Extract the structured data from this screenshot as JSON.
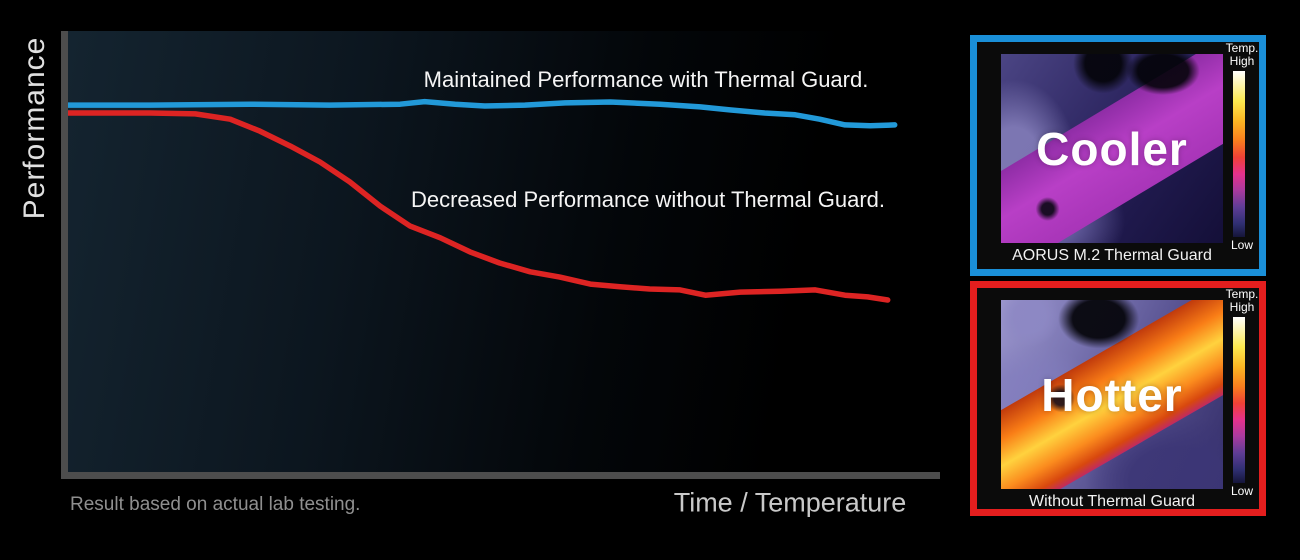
{
  "colors": {
    "background": "#000000",
    "axis": "#4d4d4d",
    "blue_line": "#2299d8",
    "red_line": "#dd2423",
    "cooler_border": "#1a8fd8",
    "hotter_border": "#e41e1e"
  },
  "chart_data": {
    "type": "line",
    "title": "",
    "xlabel": "Time / Temperature",
    "ylabel": "Performance",
    "footnote": "Result based on actual lab testing.",
    "x_range": [
      0,
      100
    ],
    "y_range": [
      0,
      100
    ],
    "grid": false,
    "legend_position": "inline-annotations",
    "series": [
      {
        "id": "maintained-line",
        "name": "Maintained Performance with Thermal Guard.",
        "color": "#2299d8",
        "points": [
          [
            0,
            83.2
          ],
          [
            9.4,
            83.2
          ],
          [
            20.9,
            83.4
          ],
          [
            30.0,
            83.2
          ],
          [
            38.1,
            83.4
          ],
          [
            40.9,
            84.0
          ],
          [
            44.4,
            83.4
          ],
          [
            47.8,
            83.0
          ],
          [
            52.4,
            83.2
          ],
          [
            57.0,
            83.7
          ],
          [
            62.2,
            83.9
          ],
          [
            67.9,
            83.4
          ],
          [
            72.5,
            82.8
          ],
          [
            75.9,
            82.1
          ],
          [
            79.9,
            81.4
          ],
          [
            83.4,
            81.0
          ],
          [
            86.2,
            80.0
          ],
          [
            89.1,
            78.7
          ],
          [
            92.0,
            78.5
          ],
          [
            94.8,
            78.7
          ]
        ]
      },
      {
        "id": "decreased-line",
        "name": "Decreased Performance without Thermal Guard.",
        "color": "#dd2423",
        "points": [
          [
            0,
            81.4
          ],
          [
            9.4,
            81.4
          ],
          [
            14.6,
            81.2
          ],
          [
            18.6,
            80.0
          ],
          [
            22.0,
            77.3
          ],
          [
            25.5,
            73.9
          ],
          [
            28.9,
            70.3
          ],
          [
            32.3,
            65.8
          ],
          [
            35.8,
            60.3
          ],
          [
            39.2,
            55.8
          ],
          [
            42.7,
            53.1
          ],
          [
            46.1,
            49.9
          ],
          [
            49.5,
            47.4
          ],
          [
            53.0,
            45.4
          ],
          [
            56.4,
            44.2
          ],
          [
            59.9,
            42.6
          ],
          [
            63.3,
            42.0
          ],
          [
            66.7,
            41.5
          ],
          [
            70.2,
            41.3
          ],
          [
            73.1,
            40.1
          ],
          [
            77.1,
            40.8
          ],
          [
            81.7,
            41.0
          ],
          [
            85.7,
            41.3
          ],
          [
            89.1,
            40.1
          ],
          [
            91.7,
            39.7
          ],
          [
            94.0,
            39.0
          ]
        ]
      }
    ]
  },
  "panels": {
    "cooler": {
      "label": "Cooler",
      "caption": "AORUS M.2 Thermal Guard",
      "border_color": "#1a8fd8",
      "scale": {
        "temp": "Temp.",
        "high": "High",
        "low": "Low"
      }
    },
    "hotter": {
      "label": "Hotter",
      "caption": "Without Thermal Guard",
      "border_color": "#e41e1e",
      "scale": {
        "temp": "Temp.",
        "high": "High",
        "low": "Low"
      }
    }
  }
}
